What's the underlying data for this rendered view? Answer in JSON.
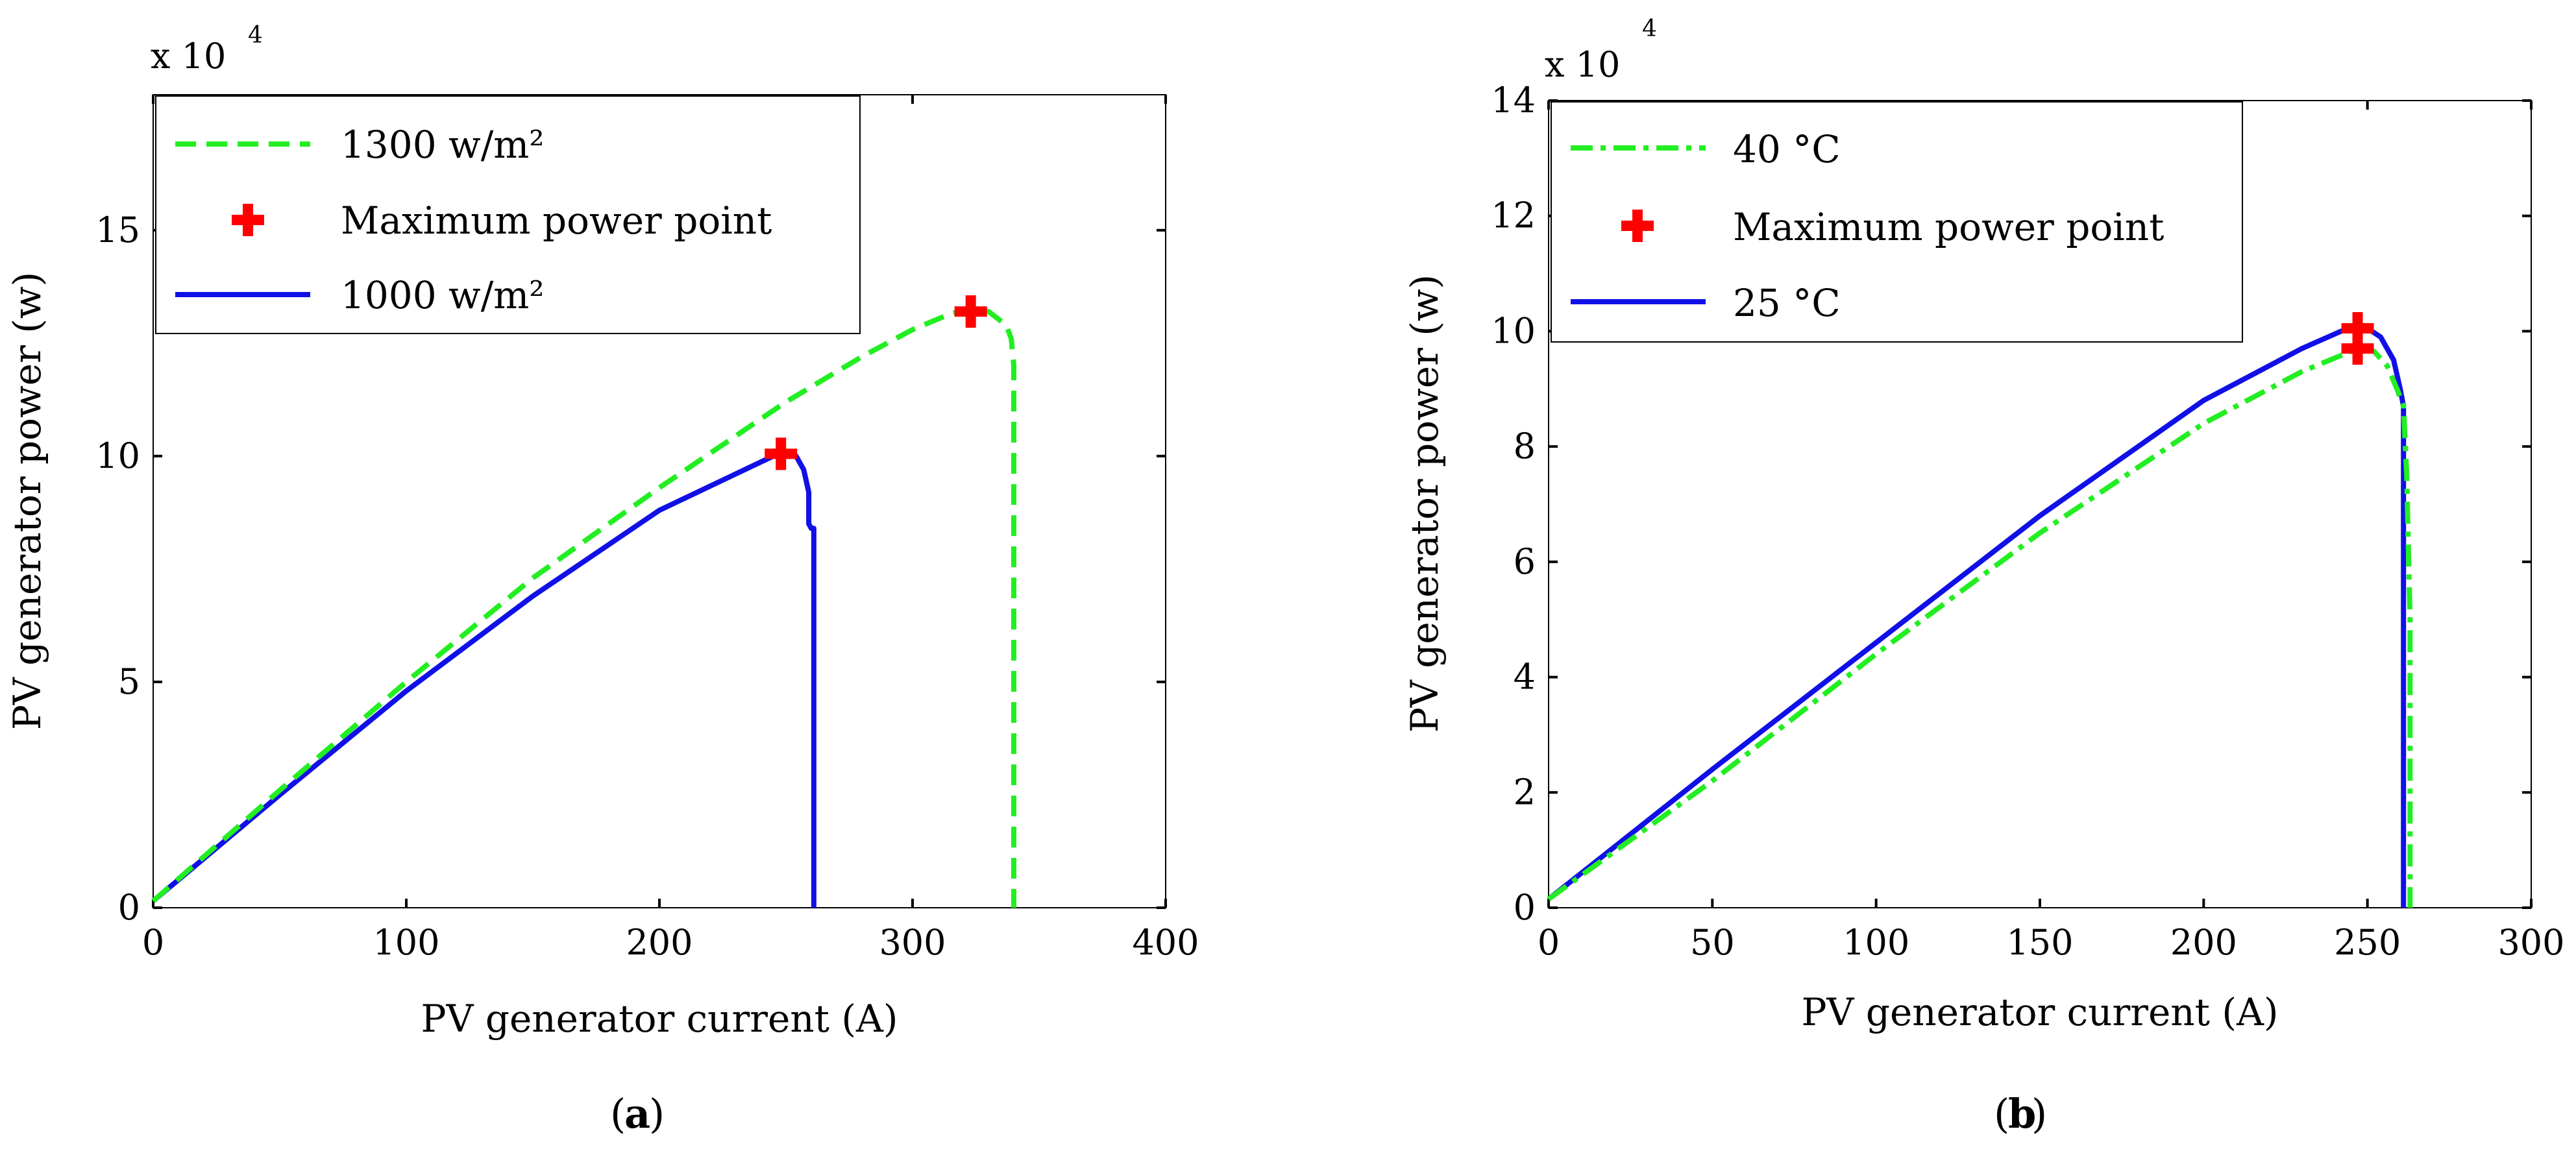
{
  "chart_data": [
    {
      "type": "line",
      "panel_label": "a",
      "xlabel": "PV generator current (A)",
      "ylabel": "PV generator power (w)",
      "exponent_base": "x 10",
      "exponent_power": "4",
      "xlim": [
        0,
        400
      ],
      "ylim": [
        0,
        18
      ],
      "xticks": [
        0,
        100,
        200,
        300,
        400
      ],
      "yticks": [
        0,
        5,
        10,
        15
      ],
      "xtick_labels": [
        "0",
        "100",
        "200",
        "300",
        "400"
      ],
      "ytick_labels": [
        "0",
        "5",
        "10",
        "15"
      ],
      "legend_position": "top-left",
      "series": [
        {
          "name": "1300 w/m²",
          "style": "dashed",
          "color": "#22ee22",
          "x": [
            0,
            50,
            100,
            150,
            200,
            250,
            280,
            300,
            315,
            322,
            330,
            337,
            339,
            340,
            340,
            340,
            340
          ],
          "y": [
            0.15,
            2.6,
            5.0,
            7.3,
            9.3,
            11.2,
            12.2,
            12.8,
            13.15,
            13.25,
            13.2,
            12.9,
            12.6,
            12.0,
            9.0,
            3.0,
            0
          ]
        },
        {
          "name": "Maximum power point",
          "style": "marker",
          "color": "#ff0000",
          "x": [
            323,
            248
          ],
          "y": [
            13.2,
            10.05
          ]
        },
        {
          "name": "1000 w/m²",
          "style": "solid",
          "color": "#1010e6",
          "x": [
            0,
            50,
            100,
            150,
            200,
            230,
            245,
            250,
            254,
            257,
            259,
            259,
            260,
            261,
            261,
            261
          ],
          "y": [
            0.15,
            2.5,
            4.8,
            6.9,
            8.8,
            9.6,
            10.0,
            10.05,
            10.0,
            9.7,
            9.2,
            8.5,
            8.4,
            8.4,
            3.0,
            0
          ]
        }
      ]
    },
    {
      "type": "line",
      "panel_label": "b",
      "xlabel": "PV generator current (A)",
      "ylabel": "PV generator power (w)",
      "exponent_base": "x 10",
      "exponent_power": "4",
      "xlim": [
        0,
        300
      ],
      "ylim": [
        0,
        14
      ],
      "xticks": [
        0,
        50,
        100,
        150,
        200,
        250,
        300
      ],
      "yticks": [
        0,
        2,
        4,
        6,
        8,
        10,
        12,
        14
      ],
      "xtick_labels": [
        "0",
        "50",
        "100",
        "150",
        "200",
        "250",
        "300"
      ],
      "ytick_labels": [
        "0",
        "2",
        "4",
        "6",
        "8",
        "10",
        "12",
        "14"
      ],
      "legend_position": "top-left",
      "series": [
        {
          "name": "40 °C",
          "style": "dashdot",
          "color": "#22ee22",
          "x": [
            0,
            50,
            100,
            150,
            200,
            230,
            245,
            248,
            252,
            256,
            259,
            261,
            262,
            263,
            263,
            263
          ],
          "y": [
            0.15,
            2.2,
            4.4,
            6.5,
            8.4,
            9.3,
            9.65,
            9.7,
            9.65,
            9.4,
            9.0,
            8.7,
            7.5,
            5.0,
            2.0,
            0
          ]
        },
        {
          "name": "Maximum power point",
          "style": "marker",
          "color": "#ff0000",
          "x": [
            247,
            247
          ],
          "y": [
            10.05,
            9.7
          ]
        },
        {
          "name": "25 °C",
          "style": "solid",
          "color": "#1010e6",
          "x": [
            0,
            50,
            100,
            150,
            200,
            230,
            242,
            247,
            250,
            254,
            258,
            260,
            261,
            261,
            261
          ],
          "y": [
            0.15,
            2.4,
            4.6,
            6.8,
            8.8,
            9.7,
            10.0,
            10.05,
            10.05,
            9.9,
            9.5,
            9.0,
            8.7,
            3.0,
            0
          ]
        }
      ]
    }
  ]
}
